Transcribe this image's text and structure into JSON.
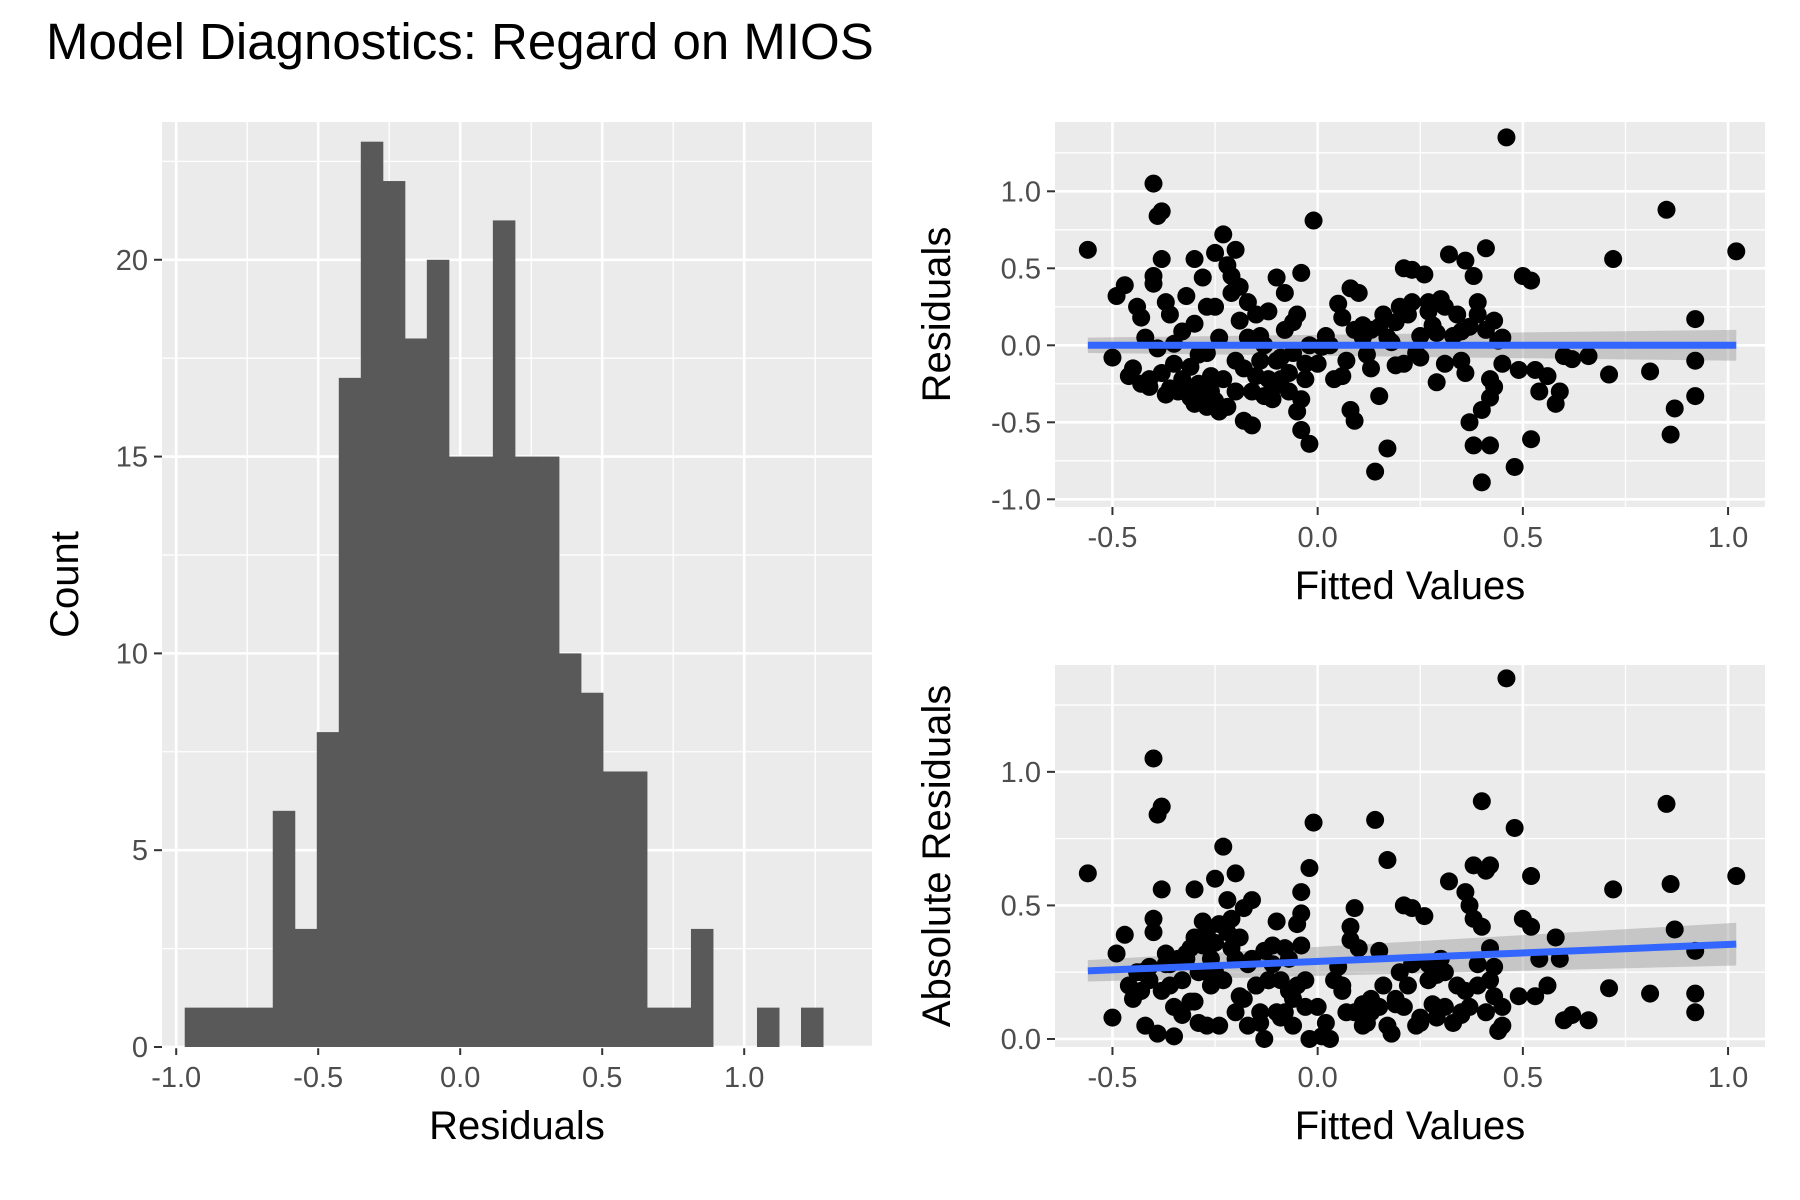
{
  "title": "Model Diagnostics: Regard on MIOS",
  "colors": {
    "panel_bg": "#ebebeb",
    "grid": "#ffffff",
    "bar_fill": "#595959",
    "point": "#000000",
    "fit_line": "#3366ff",
    "ci_band": "#999999"
  },
  "chart_data": [
    {
      "type": "histogram",
      "xlabel": "Residuals",
      "ylabel": "Count",
      "xlim": [
        -1.05,
        1.45
      ],
      "ylim": [
        0,
        23.5
      ],
      "xticks": [
        -1.0,
        -0.5,
        0.0,
        0.5,
        1.0
      ],
      "xtick_labels": [
        "-1.0",
        "-0.5",
        "0.0",
        "0.5",
        "1.0"
      ],
      "yticks": [
        0,
        5,
        10,
        15,
        20
      ],
      "ytick_labels": [
        "0",
        "5",
        "10",
        "15",
        "20"
      ],
      "grid": true,
      "bin_width": 0.0775,
      "bin_start": -0.97,
      "counts": [
        1,
        1,
        1,
        1,
        6,
        3,
        8,
        17,
        23,
        22,
        18,
        20,
        15,
        15,
        21,
        15,
        15,
        10,
        9,
        7,
        7,
        1,
        1,
        3,
        0,
        0,
        1,
        0,
        1
      ]
    },
    {
      "type": "scatter",
      "xlabel": "Fitted Values",
      "ylabel": "Residuals",
      "xlim": [
        -0.64,
        1.09
      ],
      "ylim": [
        -1.05,
        1.45
      ],
      "xticks": [
        -0.5,
        0.0,
        0.5,
        1.0
      ],
      "xtick_labels": [
        "-0.5",
        "0.0",
        "0.5",
        "1.0"
      ],
      "yticks": [
        -1.0,
        -0.5,
        0.0,
        0.5,
        1.0
      ],
      "ytick_labels": [
        "-1.0",
        "-0.5",
        "0.0",
        "0.5",
        "1.0"
      ],
      "grid": true,
      "fit": {
        "x": [
          -0.56,
          1.02
        ],
        "y": [
          0.0,
          0.0
        ],
        "ci_half_width": [
          0.05,
          0.1
        ]
      },
      "points": [
        [
          -0.56,
          0.62
        ],
        [
          -0.49,
          0.32
        ],
        [
          -0.47,
          0.39
        ],
        [
          -0.5,
          -0.08
        ],
        [
          -0.46,
          -0.2
        ],
        [
          -0.44,
          0.25
        ],
        [
          -0.43,
          0.18
        ],
        [
          -0.42,
          0.05
        ],
        [
          -0.41,
          -0.22
        ],
        [
          -0.4,
          1.05
        ],
        [
          -0.39,
          0.84
        ],
        [
          -0.38,
          0.87
        ],
        [
          -0.4,
          0.45
        ],
        [
          -0.4,
          0.4
        ],
        [
          -0.38,
          0.56
        ],
        [
          -0.37,
          0.28
        ],
        [
          -0.36,
          0.2
        ],
        [
          -0.38,
          -0.18
        ],
        [
          -0.36,
          -0.28
        ],
        [
          -0.35,
          -0.12
        ],
        [
          -0.34,
          -0.3
        ],
        [
          -0.33,
          0.09
        ],
        [
          -0.32,
          0.32
        ],
        [
          -0.31,
          -0.34
        ],
        [
          -0.3,
          0.56
        ],
        [
          -0.3,
          0.14
        ],
        [
          -0.29,
          -0.06
        ],
        [
          -0.28,
          0.44
        ],
        [
          -0.27,
          -0.4
        ],
        [
          -0.27,
          0.25
        ],
        [
          -0.26,
          -0.2
        ],
        [
          -0.25,
          0.6
        ],
        [
          -0.24,
          -0.43
        ],
        [
          -0.23,
          0.72
        ],
        [
          -0.22,
          0.52
        ],
        [
          -0.21,
          0.34
        ],
        [
          -0.2,
          0.62
        ],
        [
          -0.2,
          -0.1
        ],
        [
          -0.19,
          0.16
        ],
        [
          -0.18,
          -0.49
        ],
        [
          -0.17,
          0.28
        ],
        [
          -0.16,
          -0.52
        ],
        [
          -0.15,
          -0.2
        ],
        [
          -0.14,
          0.06
        ],
        [
          -0.13,
          -0.33
        ],
        [
          -0.12,
          0.22
        ],
        [
          -0.11,
          -0.28
        ],
        [
          -0.1,
          0.44
        ],
        [
          -0.09,
          -0.08
        ],
        [
          -0.08,
          0.34
        ],
        [
          -0.07,
          -0.18
        ],
        [
          -0.06,
          0.15
        ],
        [
          -0.05,
          -0.43
        ],
        [
          -0.04,
          -0.55
        ],
        [
          -0.04,
          0.47
        ],
        [
          -0.03,
          -0.22
        ],
        [
          -0.02,
          -0.64
        ],
        [
          -0.01,
          0.81
        ],
        [
          0.0,
          -0.12
        ],
        [
          0.01,
          -0.01
        ],
        [
          0.02,
          0.06
        ],
        [
          0.04,
          -0.22
        ],
        [
          0.05,
          0.27
        ],
        [
          0.06,
          0.18
        ],
        [
          0.07,
          -0.1
        ],
        [
          0.08,
          -0.42
        ],
        [
          0.08,
          0.37
        ],
        [
          0.09,
          -0.49
        ],
        [
          0.1,
          0.34
        ],
        [
          0.11,
          0.13
        ],
        [
          0.12,
          -0.06
        ],
        [
          0.13,
          0.1
        ],
        [
          0.14,
          -0.82
        ],
        [
          0.15,
          -0.33
        ],
        [
          0.16,
          0.2
        ],
        [
          0.17,
          -0.67
        ],
        [
          0.18,
          0.02
        ],
        [
          0.19,
          -0.13
        ],
        [
          0.2,
          0.25
        ],
        [
          0.21,
          0.5
        ],
        [
          0.22,
          0.2
        ],
        [
          0.23,
          0.49
        ],
        [
          0.24,
          -0.05
        ],
        [
          0.25,
          0.06
        ],
        [
          0.26,
          0.46
        ],
        [
          0.27,
          0.28
        ],
        [
          0.28,
          0.13
        ],
        [
          0.29,
          -0.24
        ],
        [
          0.3,
          0.3
        ],
        [
          0.31,
          -0.12
        ],
        [
          0.32,
          0.59
        ],
        [
          0.34,
          0.2
        ],
        [
          0.35,
          0.09
        ],
        [
          0.36,
          0.55
        ],
        [
          0.37,
          -0.5
        ],
        [
          0.38,
          -0.65
        ],
        [
          0.38,
          0.45
        ],
        [
          0.39,
          0.2
        ],
        [
          0.4,
          -0.89
        ],
        [
          0.41,
          0.63
        ],
        [
          0.42,
          -0.65
        ],
        [
          0.42,
          -0.34
        ],
        [
          0.43,
          -0.27
        ],
        [
          0.44,
          0.03
        ],
        [
          0.45,
          -0.12
        ],
        [
          0.46,
          1.35
        ],
        [
          0.48,
          -0.79
        ],
        [
          0.49,
          -0.16
        ],
        [
          0.5,
          0.45
        ],
        [
          0.52,
          0.42
        ],
        [
          0.52,
          -0.61
        ],
        [
          0.53,
          -0.16
        ],
        [
          0.54,
          -0.3
        ],
        [
          0.56,
          -0.2
        ],
        [
          0.58,
          -0.38
        ],
        [
          0.59,
          -0.3
        ],
        [
          0.6,
          -0.07
        ],
        [
          0.62,
          -0.09
        ],
        [
          0.66,
          -0.07
        ],
        [
          0.71,
          -0.19
        ],
        [
          0.72,
          0.56
        ],
        [
          0.81,
          -0.17
        ],
        [
          0.85,
          0.88
        ],
        [
          0.86,
          -0.58
        ],
        [
          0.87,
          -0.41
        ],
        [
          0.92,
          0.17
        ],
        [
          0.92,
          -0.1
        ],
        [
          0.92,
          -0.33
        ],
        [
          1.02,
          0.61
        ],
        [
          -0.45,
          -0.15
        ],
        [
          -0.43,
          -0.25
        ],
        [
          -0.41,
          -0.27
        ],
        [
          -0.39,
          -0.02
        ],
        [
          -0.37,
          -0.32
        ],
        [
          -0.35,
          0.01
        ],
        [
          -0.33,
          -0.22
        ],
        [
          -0.32,
          -0.3
        ],
        [
          -0.31,
          -0.14
        ],
        [
          -0.3,
          -0.38
        ],
        [
          -0.29,
          -0.25
        ],
        [
          -0.28,
          -0.35
        ],
        [
          -0.27,
          -0.05
        ],
        [
          -0.26,
          -0.3
        ],
        [
          -0.25,
          -0.36
        ],
        [
          -0.25,
          0.25
        ],
        [
          -0.24,
          0.05
        ],
        [
          -0.23,
          -0.22
        ],
        [
          -0.22,
          -0.4
        ],
        [
          -0.21,
          0.45
        ],
        [
          -0.2,
          -0.3
        ],
        [
          -0.19,
          0.38
        ],
        [
          -0.18,
          -0.15
        ],
        [
          -0.17,
          0.05
        ],
        [
          -0.16,
          -0.3
        ],
        [
          -0.15,
          0.2
        ],
        [
          -0.14,
          -0.1
        ],
        [
          -0.13,
          0.0
        ],
        [
          -0.12,
          -0.22
        ],
        [
          -0.11,
          -0.35
        ],
        [
          -0.1,
          -0.1
        ],
        [
          -0.09,
          -0.22
        ],
        [
          -0.08,
          0.1
        ],
        [
          -0.07,
          -0.3
        ],
        [
          -0.06,
          -0.05
        ],
        [
          -0.05,
          0.2
        ],
        [
          -0.04,
          -0.35
        ],
        [
          -0.03,
          -0.12
        ],
        [
          -0.02,
          0.0
        ],
        [
          0.03,
          0.0
        ],
        [
          0.06,
          -0.2
        ],
        [
          0.09,
          0.1
        ],
        [
          0.11,
          0.05
        ],
        [
          0.13,
          -0.15
        ],
        [
          0.15,
          0.12
        ],
        [
          0.17,
          0.05
        ],
        [
          0.19,
          0.15
        ],
        [
          0.21,
          -0.12
        ],
        [
          0.23,
          0.28
        ],
        [
          0.25,
          -0.08
        ],
        [
          0.27,
          0.22
        ],
        [
          0.29,
          0.08
        ],
        [
          0.31,
          0.25
        ],
        [
          0.33,
          0.06
        ],
        [
          0.35,
          -0.1
        ],
        [
          0.37,
          0.12
        ],
        [
          0.39,
          0.28
        ],
        [
          0.41,
          0.1
        ],
        [
          0.43,
          0.16
        ],
        [
          0.45,
          0.05
        ],
        [
          0.42,
          -0.22
        ],
        [
          0.4,
          -0.42
        ],
        [
          0.36,
          -0.18
        ]
      ]
    },
    {
      "type": "scatter",
      "xlabel": "Fitted Values",
      "ylabel": "Absolute Residuals",
      "xlim": [
        -0.64,
        1.09
      ],
      "ylim": [
        -0.03,
        1.4
      ],
      "xticks": [
        -0.5,
        0.0,
        0.5,
        1.0
      ],
      "xtick_labels": [
        "-0.5",
        "0.0",
        "0.5",
        "1.0"
      ],
      "yticks": [
        0.0,
        0.5,
        1.0
      ],
      "ytick_labels": [
        "0.0",
        "0.5",
        "1.0"
      ],
      "grid": true,
      "fit": {
        "x": [
          -0.56,
          1.02
        ],
        "y": [
          0.255,
          0.355
        ],
        "ci_half_width": [
          0.04,
          0.08
        ]
      }
    }
  ]
}
